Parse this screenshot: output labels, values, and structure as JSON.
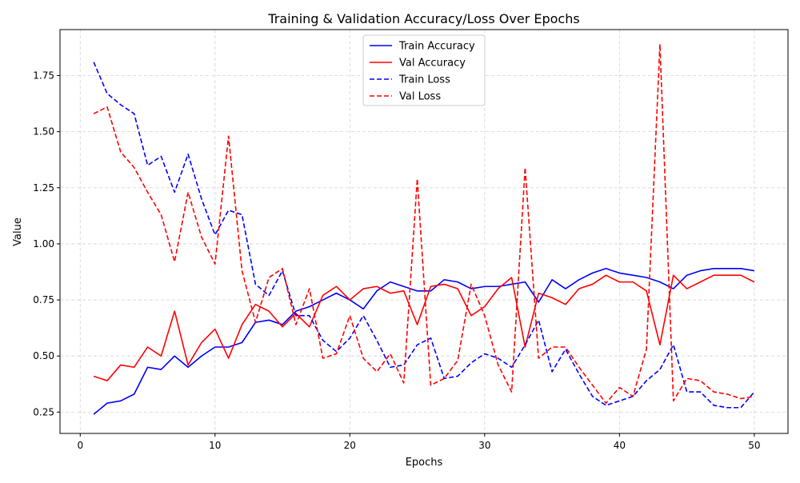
{
  "chart_data": {
    "type": "line",
    "title": "Training & Validation Accuracy/Loss Over Epochs",
    "xlabel": "Epochs",
    "ylabel": "Value",
    "xlim": [
      -1.5,
      52.5
    ],
    "ylim": [
      0.155,
      1.955
    ],
    "xticks": [
      0,
      10,
      20,
      30,
      40,
      50
    ],
    "xtick_labels": [
      "0",
      "10",
      "20",
      "30",
      "40",
      "50"
    ],
    "yticks": [
      0.25,
      0.5,
      0.75,
      1.0,
      1.25,
      1.5,
      1.75
    ],
    "ytick_labels": [
      "0.25",
      "0.50",
      "0.75",
      "1.00",
      "1.25",
      "1.50",
      "1.75"
    ],
    "grid": true,
    "legend_position": "top-center",
    "x": [
      1,
      2,
      3,
      4,
      5,
      6,
      7,
      8,
      9,
      10,
      11,
      12,
      13,
      14,
      15,
      16,
      17,
      18,
      19,
      20,
      21,
      22,
      23,
      24,
      25,
      26,
      27,
      28,
      29,
      30,
      31,
      32,
      33,
      34,
      35,
      36,
      37,
      38,
      39,
      40,
      41,
      42,
      43,
      44,
      45,
      46,
      47,
      48,
      49,
      50
    ],
    "series": [
      {
        "name": "Train Accuracy",
        "color": "#0000ff",
        "dash": "solid",
        "values": [
          0.24,
          0.29,
          0.3,
          0.33,
          0.45,
          0.44,
          0.5,
          0.45,
          0.5,
          0.54,
          0.54,
          0.56,
          0.65,
          0.66,
          0.64,
          0.7,
          0.72,
          0.75,
          0.78,
          0.75,
          0.71,
          0.79,
          0.83,
          0.81,
          0.79,
          0.79,
          0.84,
          0.83,
          0.8,
          0.81,
          0.81,
          0.82,
          0.83,
          0.74,
          0.84,
          0.8,
          0.84,
          0.87,
          0.89,
          0.87,
          0.86,
          0.85,
          0.83,
          0.8,
          0.86,
          0.88,
          0.89,
          0.89,
          0.89,
          0.88
        ]
      },
      {
        "name": "Val Accuracy",
        "color": "#ff0000",
        "dash": "solid",
        "values": [
          0.41,
          0.39,
          0.46,
          0.45,
          0.54,
          0.5,
          0.7,
          0.46,
          0.56,
          0.62,
          0.49,
          0.64,
          0.73,
          0.7,
          0.63,
          0.69,
          0.63,
          0.77,
          0.81,
          0.75,
          0.8,
          0.81,
          0.78,
          0.79,
          0.64,
          0.81,
          0.82,
          0.8,
          0.68,
          0.72,
          0.8,
          0.85,
          0.54,
          0.78,
          0.76,
          0.73,
          0.8,
          0.82,
          0.86,
          0.83,
          0.83,
          0.79,
          0.55,
          0.86,
          0.8,
          0.83,
          0.86,
          0.86,
          0.86,
          0.83
        ]
      },
      {
        "name": "Train Loss",
        "color": "#0000ff",
        "dash": "dashed",
        "values": [
          1.81,
          1.67,
          1.62,
          1.58,
          1.35,
          1.39,
          1.23,
          1.4,
          1.2,
          1.04,
          1.15,
          1.13,
          0.82,
          0.77,
          0.88,
          0.68,
          0.68,
          0.57,
          0.52,
          0.58,
          0.68,
          0.57,
          0.45,
          0.46,
          0.55,
          0.58,
          0.4,
          0.41,
          0.47,
          0.51,
          0.49,
          0.45,
          0.55,
          0.66,
          0.43,
          0.53,
          0.42,
          0.32,
          0.28,
          0.3,
          0.32,
          0.39,
          0.44,
          0.55,
          0.34,
          0.34,
          0.28,
          0.27,
          0.27,
          0.34
        ]
      },
      {
        "name": "Val Loss",
        "color": "#ff0000",
        "dash": "dashed",
        "values": [
          1.58,
          1.61,
          1.41,
          1.34,
          1.23,
          1.13,
          0.92,
          1.23,
          1.03,
          0.91,
          1.48,
          0.88,
          0.65,
          0.85,
          0.89,
          0.64,
          0.8,
          0.49,
          0.51,
          0.68,
          0.49,
          0.43,
          0.51,
          0.38,
          1.29,
          0.37,
          0.4,
          0.48,
          0.82,
          0.68,
          0.46,
          0.34,
          1.34,
          0.49,
          0.54,
          0.54,
          0.45,
          0.37,
          0.29,
          0.36,
          0.32,
          0.53,
          1.89,
          0.3,
          0.4,
          0.39,
          0.34,
          0.33,
          0.31,
          0.32
        ]
      }
    ]
  }
}
